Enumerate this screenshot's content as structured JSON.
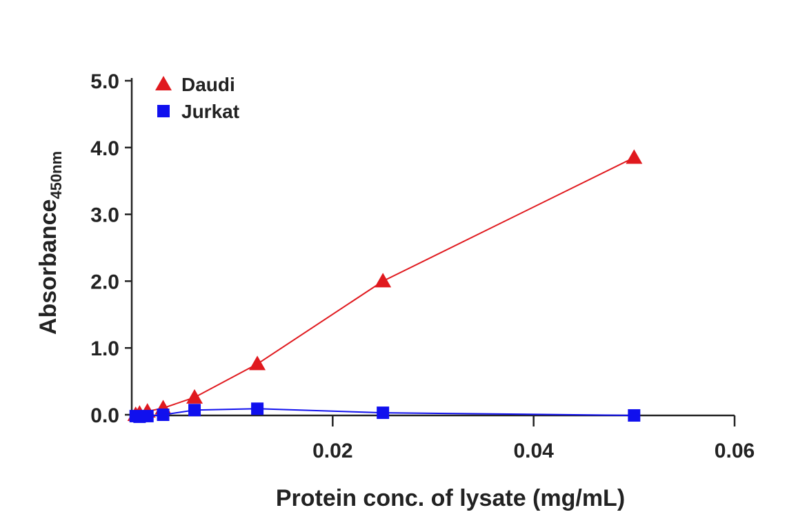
{
  "chart_data": {
    "type": "line",
    "title": "",
    "xlabel": "Protein conc. of lysate (mg/mL)",
    "ylabel": "Absorbance",
    "ylabel_subscript": "450nm",
    "xlim": [
      0,
      0.06
    ],
    "ylim": [
      0,
      5.0
    ],
    "x_ticks": [
      {
        "value": 0.02,
        "label": "0.02"
      },
      {
        "value": 0.04,
        "label": "0.04"
      },
      {
        "value": 0.06,
        "label": "0.06"
      }
    ],
    "y_ticks": [
      {
        "value": 0.0,
        "label": "0.0"
      },
      {
        "value": 1.0,
        "label": "1.0"
      },
      {
        "value": 2.0,
        "label": "2.0"
      },
      {
        "value": 3.0,
        "label": "3.0"
      },
      {
        "value": 4.0,
        "label": "4.0"
      },
      {
        "value": 5.0,
        "label": "5.0"
      }
    ],
    "grid": false,
    "legend_position": "top-left",
    "series": [
      {
        "name": "Daudi",
        "color": "#e0191e",
        "marker": "triangle",
        "x": [
          0.00039,
          0.00078,
          0.00156,
          0.003125,
          0.00625,
          0.0125,
          0.025,
          0.05
        ],
        "y": [
          0.0,
          0.02,
          0.05,
          0.1,
          0.26,
          0.76,
          2.0,
          3.85
        ]
      },
      {
        "name": "Jurkat",
        "color": "#1010ee",
        "marker": "square",
        "x": [
          0.00039,
          0.00078,
          0.00156,
          0.003125,
          0.00625,
          0.0125,
          0.025,
          0.05
        ],
        "y": [
          -0.02,
          -0.03,
          -0.02,
          0.0,
          0.07,
          0.09,
          0.03,
          -0.01
        ]
      }
    ]
  }
}
